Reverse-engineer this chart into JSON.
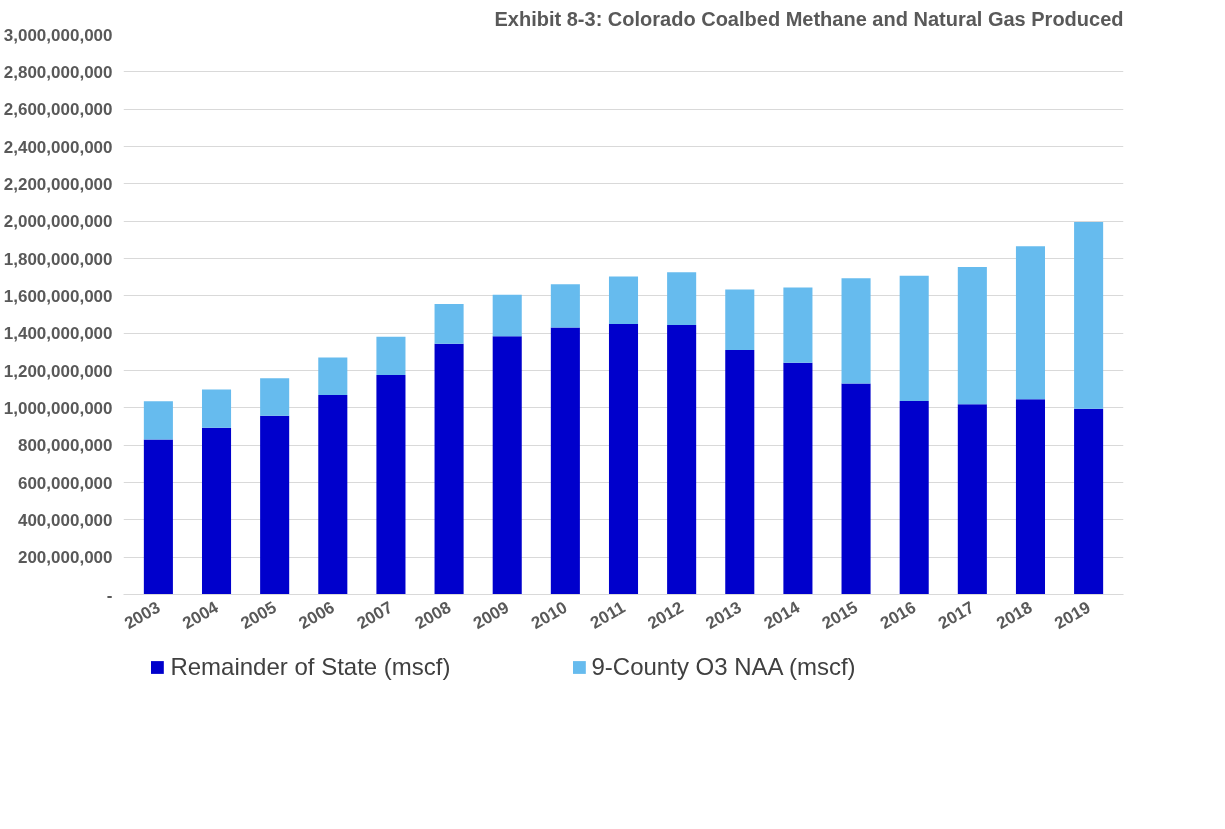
{
  "chart_data": {
    "type": "bar",
    "title": "Exhibit 8-3: Colorado Coalbed Methane and Natural Gas Produced",
    "categories": [
      "2003",
      "2004",
      "2005",
      "2006",
      "2007",
      "2008",
      "2009",
      "2010",
      "2011",
      "2012",
      "2013",
      "2014",
      "2015",
      "2016",
      "2017",
      "2018",
      "2019"
    ],
    "stacked": true,
    "series": [
      {
        "name": "Remainder of State (mscf)",
        "color": "#0000cc",
        "values": [
          830000000,
          893000000,
          958000000,
          1069000000,
          1176000000,
          1343000000,
          1384000000,
          1431000000,
          1449000000,
          1444000000,
          1310000000,
          1241000000,
          1130000000,
          1037000000,
          1019000000,
          1046000000,
          995000000
        ]
      },
      {
        "name": "9-County O3 NAA (mscf)",
        "color": "#66bbee",
        "values": [
          205000000,
          205000000,
          200000000,
          200000000,
          205000000,
          213000000,
          222000000,
          231000000,
          255000000,
          283000000,
          324000000,
          403000000,
          564000000,
          671000000,
          736000000,
          820000000,
          1000000000
        ]
      }
    ],
    "ylim": [
      0,
      3000000000
    ],
    "yticks": [
      {
        "value": 0,
        "label": "-"
      },
      {
        "value": 200000000,
        "label": "200,000,000"
      },
      {
        "value": 400000000,
        "label": "400,000,000"
      },
      {
        "value": 600000000,
        "label": "600,000,000"
      },
      {
        "value": 800000000,
        "label": "800,000,000"
      },
      {
        "value": 1000000000,
        "label": "1,000,000,000"
      },
      {
        "value": 1200000000,
        "label": "1,200,000,000"
      },
      {
        "value": 1400000000,
        "label": "1,400,000,000"
      },
      {
        "value": 1600000000,
        "label": "1,600,000,000"
      },
      {
        "value": 1800000000,
        "label": "1,800,000,000"
      },
      {
        "value": 2000000000,
        "label": "2,000,000,000"
      },
      {
        "value": 2200000000,
        "label": "2,200,000,000"
      },
      {
        "value": 2400000000,
        "label": "2,400,000,000"
      },
      {
        "value": 2600000000,
        "label": "2,600,000,000"
      },
      {
        "value": 2800000000,
        "label": "2,800,000,000"
      },
      {
        "value": 3000000000,
        "label": "3,000,000,000"
      }
    ],
    "grid": "y",
    "legend": "bottom"
  }
}
